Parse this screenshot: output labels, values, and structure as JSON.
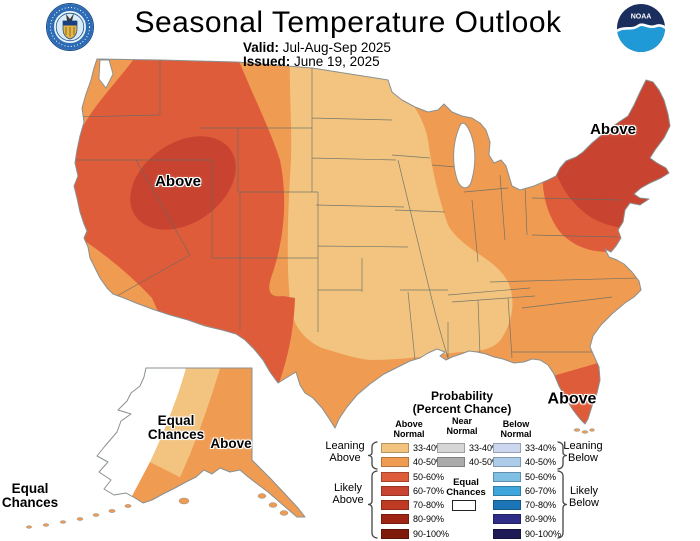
{
  "header": {
    "title": "Seasonal Temperature Outlook",
    "valid_label": "Valid:",
    "valid_value": "Jul-Aug-Sep 2025",
    "issued_label": "Issued:",
    "issued_value": "June 19, 2025",
    "noaa_logo_text": "NOAA"
  },
  "map_labels": {
    "west": "Above",
    "northeast": "Above",
    "florida": "Above",
    "alaska_above": "Above",
    "alaska_equal": "Equal\nChances",
    "hawaii_equal": "Equal\nChances"
  },
  "colors": {
    "above_33_40": "#F2C47F",
    "above_40_50": "#EF9B52",
    "above_50_60": "#DF5C3B",
    "above_60_70": "#C84430",
    "above_70_80": "#BE3A22",
    "above_80_90": "#9E2513",
    "above_90_100": "#7E1B0A",
    "near_33_40": "#D6D6D6",
    "near_40_50": "#ABABAB",
    "below_33_40": "#CBD7EF",
    "below_40_50": "#ACCCEA",
    "below_50_60": "#7FBFE3",
    "below_60_70": "#3FA6DC",
    "below_70_80": "#1B75B7",
    "below_80_90": "#2F2D87",
    "below_90_100": "#1D1A55",
    "equal_chances": "#FFFFFF",
    "coast_stroke": "#8a9090",
    "state_stroke": "#5f6b66"
  },
  "legend": {
    "title": "Probability",
    "subtitle": "(Percent Chance)",
    "equal_label": "Equal\nChances",
    "columns": [
      {
        "header": "Above\nNormal",
        "rows": [
          {
            "label": "33-40%",
            "color": "#F2C47F"
          },
          {
            "label": "40-50%",
            "color": "#EF9B52"
          },
          {
            "label": "50-60%",
            "color": "#DF5C3B"
          },
          {
            "label": "60-70%",
            "color": "#C84430"
          },
          {
            "label": "70-80%",
            "color": "#BE3A22"
          },
          {
            "label": "80-90%",
            "color": "#9E2513"
          },
          {
            "label": "90-100%",
            "color": "#7E1B0A"
          }
        ]
      },
      {
        "header": "Near\nNormal",
        "rows": [
          {
            "label": "33-40%",
            "color": "#D6D6D6"
          },
          {
            "label": "40-50%",
            "color": "#ABABAB"
          }
        ]
      },
      {
        "header": "Below\nNormal",
        "rows": [
          {
            "label": "33-40%",
            "color": "#CBD7EF"
          },
          {
            "label": "40-50%",
            "color": "#ACCCEA"
          },
          {
            "label": "50-60%",
            "color": "#7FBFE3"
          },
          {
            "label": "60-70%",
            "color": "#3FA6DC"
          },
          {
            "label": "70-80%",
            "color": "#1B75B7"
          },
          {
            "label": "80-90%",
            "color": "#2F2D87"
          },
          {
            "label": "90-100%",
            "color": "#1D1A55"
          }
        ]
      }
    ],
    "side_labels": {
      "leaning_above": "Leaning\nAbove",
      "likely_above": "Likely\nAbove",
      "leaning_below": "Leaning\nBelow",
      "likely_below": "Likely\nBelow"
    }
  }
}
